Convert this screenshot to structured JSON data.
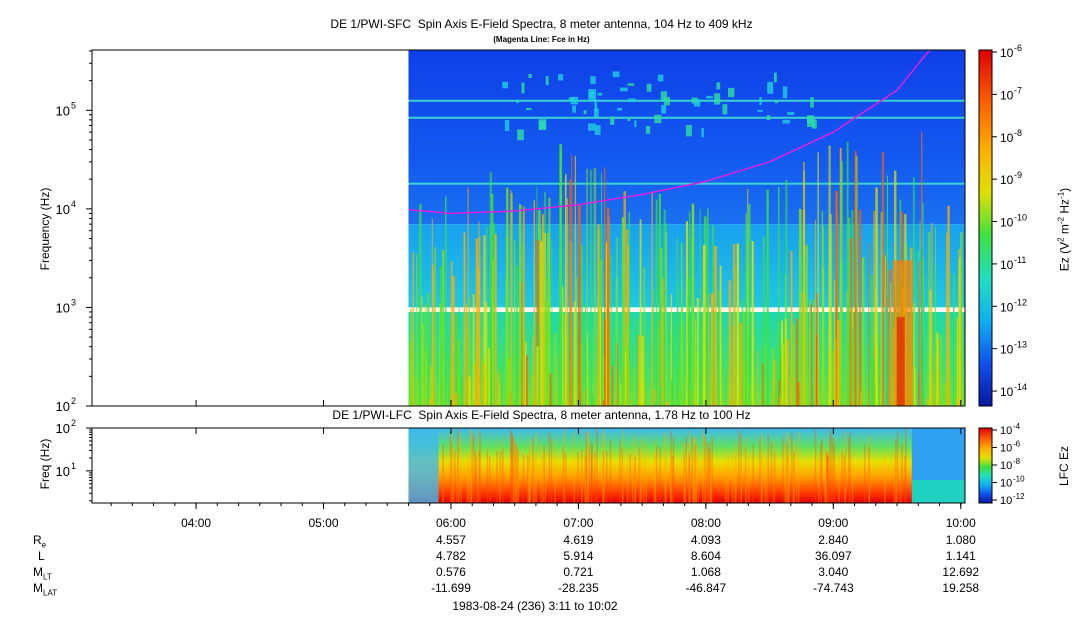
{
  "chart_data": [
    {
      "type": "heatmap",
      "title": "DE 1/PWI-SFC  Spin Axis E-Field Spectra, 8 meter antenna, 104 Hz to 409 kHz",
      "subtitle": "(Magenta Line: Fce in Hz)",
      "ylabel": "Frequency (Hz)",
      "yscale": "log",
      "ylim": [
        100,
        409000
      ],
      "yticks": [
        {
          "value": 100,
          "base": "10",
          "exp": "2"
        },
        {
          "value": 1000,
          "base": "10",
          "exp": "3"
        },
        {
          "value": 10000,
          "base": "10",
          "exp": "4"
        },
        {
          "value": 100000,
          "base": "10",
          "exp": "5"
        }
      ],
      "data_start_time": "05:40",
      "fce_line": {
        "color": "#e020e0",
        "times": [
          "05:40",
          "06:00",
          "06:30",
          "07:00",
          "07:30",
          "08:00",
          "08:30",
          "09:00",
          "09:30",
          "09:45"
        ],
        "values": [
          9800,
          9000,
          9500,
          11000,
          14000,
          19000,
          30000,
          60000,
          160000,
          400000
        ]
      },
      "colorbar": {
        "label": "Ez (V² m⁻² Hz⁻¹)",
        "label_parts": {
          "a": "Ez (V",
          "s1": "2",
          "b": " m",
          "s2": "-2",
          "c": " Hz",
          "s3": "-1",
          "d": ")"
        },
        "scale": "log",
        "ticks": [
          {
            "base": "10",
            "exp": "-6"
          },
          {
            "base": "10",
            "exp": "-7"
          },
          {
            "base": "10",
            "exp": "-8"
          },
          {
            "base": "10",
            "exp": "-9"
          },
          {
            "base": "10",
            "exp": "-10"
          },
          {
            "base": "10",
            "exp": "-11"
          },
          {
            "base": "10",
            "exp": "-12"
          },
          {
            "base": "10",
            "exp": "-13"
          },
          {
            "base": "10",
            "exp": "-14"
          }
        ],
        "range": [
          1e-14,
          1e-06
        ]
      }
    },
    {
      "type": "heatmap",
      "title": "DE 1/PWI-LFC  Spin Axis E-Field Spectra, 8 meter antenna, 1.78 Hz to 100 Hz",
      "ylabel": "Freq (Hz)",
      "yscale": "log",
      "ylim": [
        1.78,
        100
      ],
      "yticks": [
        {
          "value": 10,
          "base": "10",
          "exp": "1"
        },
        {
          "value": 100,
          "base": "10",
          "exp": "2"
        }
      ],
      "colorbar": {
        "label": "LFC Ez",
        "scale": "log",
        "ticks": [
          {
            "base": "10",
            "exp": "-4"
          },
          {
            "base": "10",
            "exp": "-6"
          },
          {
            "base": "10",
            "exp": "-8"
          },
          {
            "base": "10",
            "exp": "-10"
          },
          {
            "base": "10",
            "exp": "-12"
          }
        ],
        "range": [
          1e-12,
          0.0001
        ]
      }
    }
  ],
  "x_axis": {
    "start": "03:11",
    "end": "10:02",
    "tick_labels": [
      "04:00",
      "05:00",
      "06:00",
      "07:00",
      "08:00",
      "09:00",
      "10:00"
    ]
  },
  "ephemeris": {
    "rows": [
      {
        "label": "R",
        "sub": "e",
        "values": [
          "4.557",
          "4.619",
          "4.093",
          "2.840",
          "1.080"
        ]
      },
      {
        "label": "L",
        "sub": "",
        "values": [
          "4.782",
          "5.914",
          "8.604",
          "36.097",
          "1.141"
        ]
      },
      {
        "label": "M",
        "sub": "LT",
        "values": [
          "0.576",
          "0.721",
          "1.068",
          "3.040",
          "12.692"
        ]
      },
      {
        "label": "M",
        "sub": "LAT",
        "values": [
          "-11.699",
          "-28.235",
          "-46.847",
          "-74.743",
          "19.258"
        ]
      }
    ],
    "times": [
      "06:00",
      "07:00",
      "08:00",
      "09:00",
      "10:00"
    ]
  },
  "footer": "1983-08-24 (236) 3:11 to 10:02"
}
